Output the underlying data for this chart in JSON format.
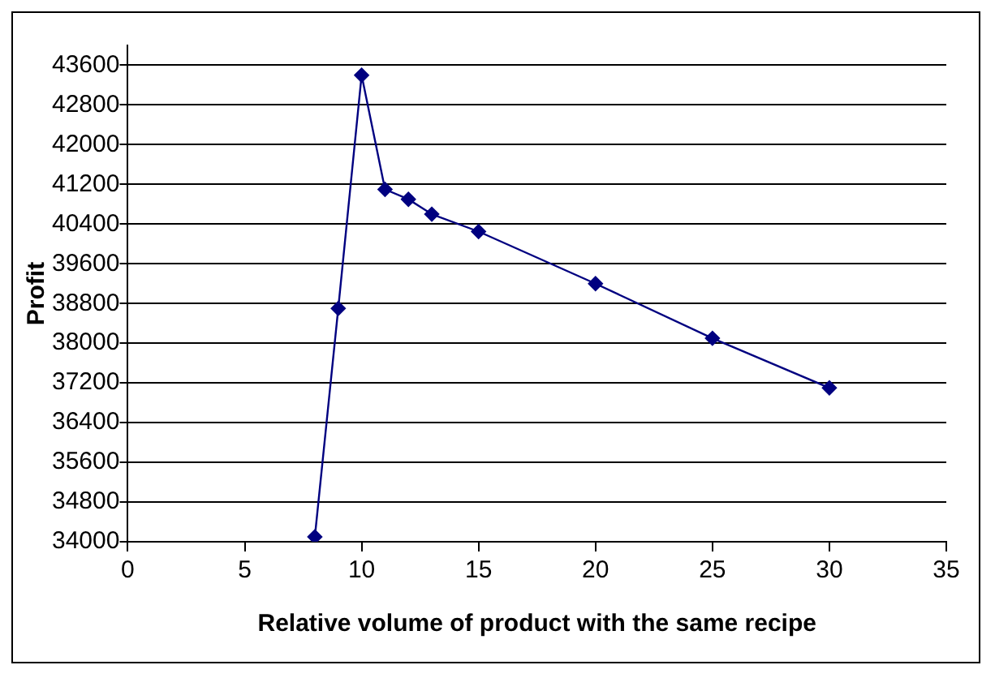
{
  "chart_data": {
    "type": "line",
    "xlabel": "Relative volume of product with the same recipe",
    "ylabel": "Profit",
    "x": [
      8,
      9,
      10,
      11,
      12,
      13,
      15,
      20,
      25,
      30
    ],
    "series": [
      {
        "color": "#000080",
        "values": [
          34100,
          38700,
          43400,
          41100,
          40900,
          40600,
          40250,
          39200,
          38100,
          37100
        ]
      }
    ],
    "xlim": [
      0,
      35
    ],
    "xticks": [
      0,
      5,
      10,
      15,
      20,
      25,
      30,
      35
    ],
    "ylim": [
      34000,
      44000
    ],
    "yticks": [
      34000,
      34800,
      35600,
      36400,
      37200,
      38000,
      38800,
      39600,
      40400,
      41200,
      42000,
      42800,
      43600
    ],
    "grid": "y",
    "legend": false,
    "marker": "diamond",
    "line_style": "solid"
  }
}
